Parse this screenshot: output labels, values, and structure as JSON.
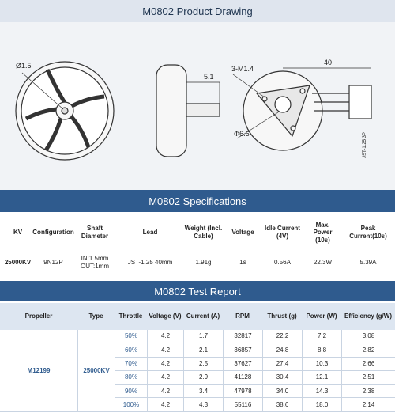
{
  "header": {
    "title": "M0802 Product Drawing"
  },
  "drawing": {
    "labels": [
      "Ø1.5",
      "5.1",
      "3-M1.4",
      "40",
      "Φ6.6",
      "JST-1.25 3P"
    ]
  },
  "specifications": {
    "title": "M0802 Specifications",
    "columns": [
      "KV",
      "Configuration",
      "Shaft Diameter",
      "Lead",
      "Weight (Incl. Cable)",
      "Voltage",
      "Idle Current (4V)",
      "Max. Power (10s)",
      "Peak Current(10s)"
    ],
    "values": [
      "25000KV",
      "9N12P",
      "IN:1.5mm OUT:1mm",
      "JST-1.25 40mm",
      "1.91g",
      "1s",
      "0.56A",
      "22.3W",
      "5.39A"
    ]
  },
  "test_report": {
    "title": "M0802 Test Report",
    "columns": [
      "Propeller",
      "Type",
      "Throttle",
      "Voltage (V)",
      "Current (A)",
      "RPM",
      "Thrust (g)",
      "Power (W)",
      "Efficiency (g/W)"
    ],
    "propeller": "M12199",
    "type": "25000KV",
    "rows": [
      [
        "50%",
        "4.2",
        "1.7",
        "32817",
        "22.2",
        "7.2",
        "3.08"
      ],
      [
        "60%",
        "4.2",
        "2.1",
        "36857",
        "24.8",
        "8.8",
        "2.82"
      ],
      [
        "70%",
        "4.2",
        "2.5",
        "37627",
        "27.4",
        "10.3",
        "2.66"
      ],
      [
        "80%",
        "4.2",
        "2.9",
        "41128",
        "30.4",
        "12.1",
        "2.51"
      ],
      [
        "90%",
        "4.2",
        "3.4",
        "47978",
        "34.0",
        "14.3",
        "2.38"
      ],
      [
        "100%",
        "4.2",
        "4.3",
        "55116",
        "38.6",
        "18.0",
        "2.14"
      ]
    ]
  }
}
